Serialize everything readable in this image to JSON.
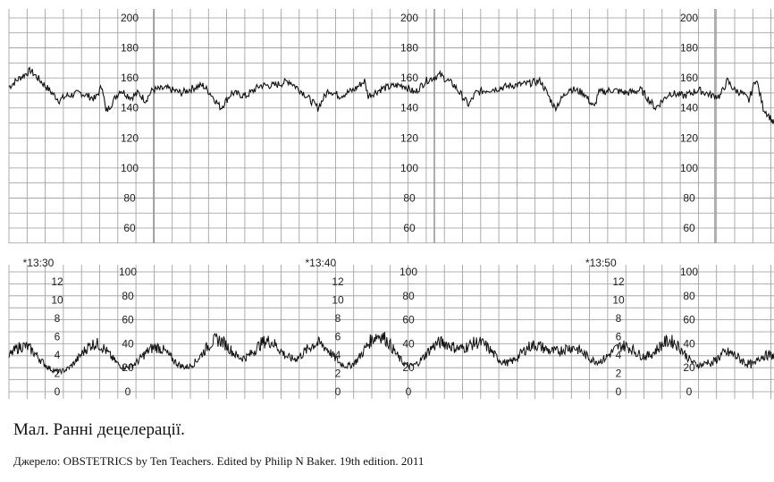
{
  "caption": "Мал. Ранні децелерації.",
  "source": "Джерело: OBSTETRICS by Ten Teachers. Edited by Philip N Baker. 19th edition.  2011",
  "chart_data": [
    {
      "type": "line",
      "name": "fhr",
      "ylim": [
        50,
        205
      ],
      "yticks": [
        60,
        80,
        100,
        120,
        140,
        160,
        180,
        200
      ],
      "grid": true,
      "x_minutes": [
        0,
        3,
        6,
        10,
        14,
        16,
        20,
        24,
        26,
        27,
        31,
        34,
        36,
        38,
        40,
        44,
        48,
        52,
        54,
        56,
        59,
        62,
        66,
        70,
        74,
        78,
        82,
        86,
        88,
        89,
        92,
        96,
        99,
        100,
        104,
        108,
        110,
        113,
        116,
        120,
        124,
        128,
        130,
        133,
        136,
        140,
        144,
        148,
        152,
        156,
        160,
        163,
        164,
        168,
        172,
        176,
        180,
        184,
        188,
        192,
        194,
        196,
        198,
        200,
        202,
        204,
        206,
        208,
        210,
        213
      ],
      "values": [
        154,
        160,
        165,
        155,
        145,
        148,
        150,
        146,
        155,
        137,
        152,
        147,
        150,
        145,
        152,
        153,
        150,
        154,
        155,
        150,
        140,
        150,
        148,
        155,
        155,
        158,
        150,
        140,
        148,
        152,
        148,
        152,
        158,
        148,
        153,
        155,
        155,
        150,
        158,
        162,
        155,
        142,
        150,
        152,
        153,
        155,
        156,
        158,
        140,
        153,
        150,
        140,
        150,
        152,
        150,
        152,
        140,
        150,
        148,
        152,
        150,
        148,
        148,
        158,
        152,
        150,
        145,
        160,
        140,
        130
      ]
    },
    {
      "type": "line",
      "name": "toco",
      "ylim": [
        0,
        100
      ],
      "yticks": [
        0,
        20,
        40,
        60,
        80,
        100
      ],
      "ylim_alt": [
        0,
        12
      ],
      "yticks_alt": [
        0,
        2,
        4,
        6,
        8,
        10,
        12
      ],
      "grid": true,
      "time_labels": [
        {
          "label": "*13:30",
          "minute": 8.2
        },
        {
          "label": "*13:40",
          "minute": 86.8
        },
        {
          "label": "*13:50",
          "minute": 164.8
        }
      ],
      "contraction_peaks_minutes": [
        4,
        24,
        41,
        58,
        72,
        86,
        103,
        120,
        131,
        146,
        157,
        171,
        184,
        200,
        212
      ],
      "contraction_peak_values": [
        38,
        40,
        37,
        43,
        42,
        40,
        47,
        40,
        40,
        38,
        36,
        38,
        42,
        37,
        30
      ],
      "baseline_value": 14
    }
  ]
}
